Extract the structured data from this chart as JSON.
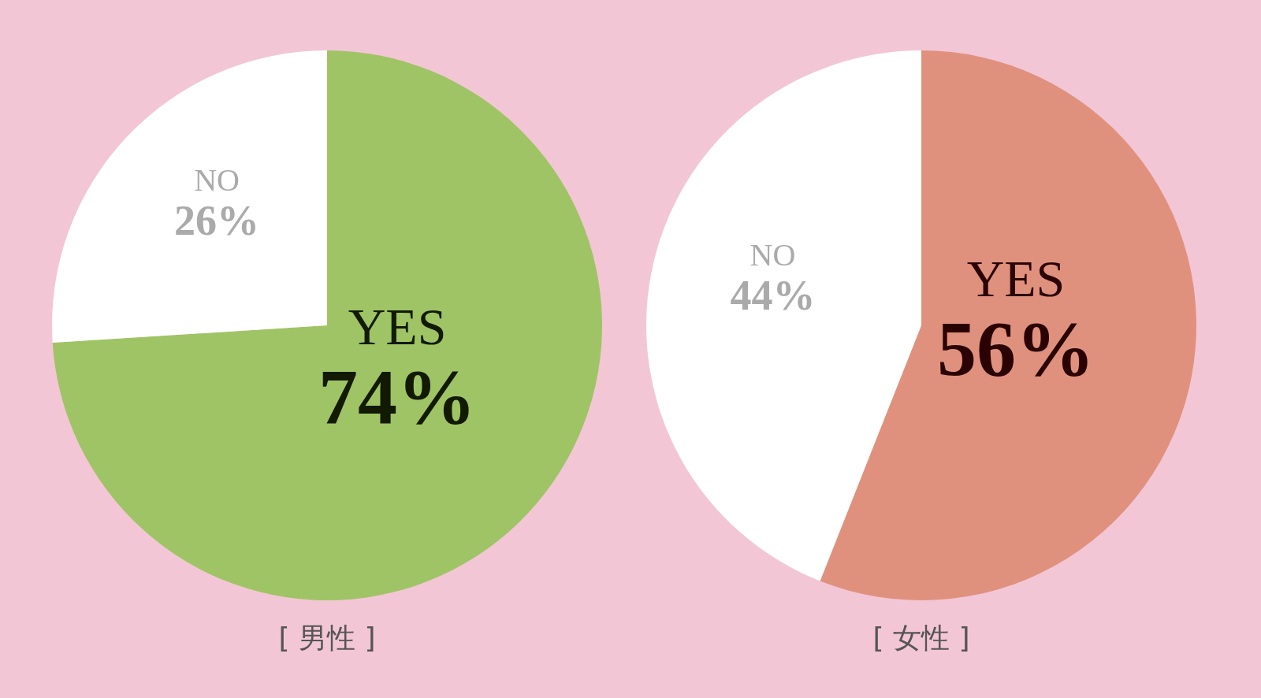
{
  "chart_data": [
    {
      "type": "pie",
      "title": "[ 男性 ]",
      "categories": [
        "YES",
        "NO"
      ],
      "values": [
        74,
        26
      ],
      "colors": [
        "#9fc465",
        "#ffffff"
      ],
      "value_labels": [
        "74%",
        "26%"
      ]
    },
    {
      "type": "pie",
      "title": "[ 女性 ]",
      "categories": [
        "YES",
        "NO"
      ],
      "values": [
        56,
        44
      ],
      "colors": [
        "#e0917e",
        "#ffffff"
      ],
      "value_labels": [
        "56%",
        "44%"
      ]
    }
  ]
}
